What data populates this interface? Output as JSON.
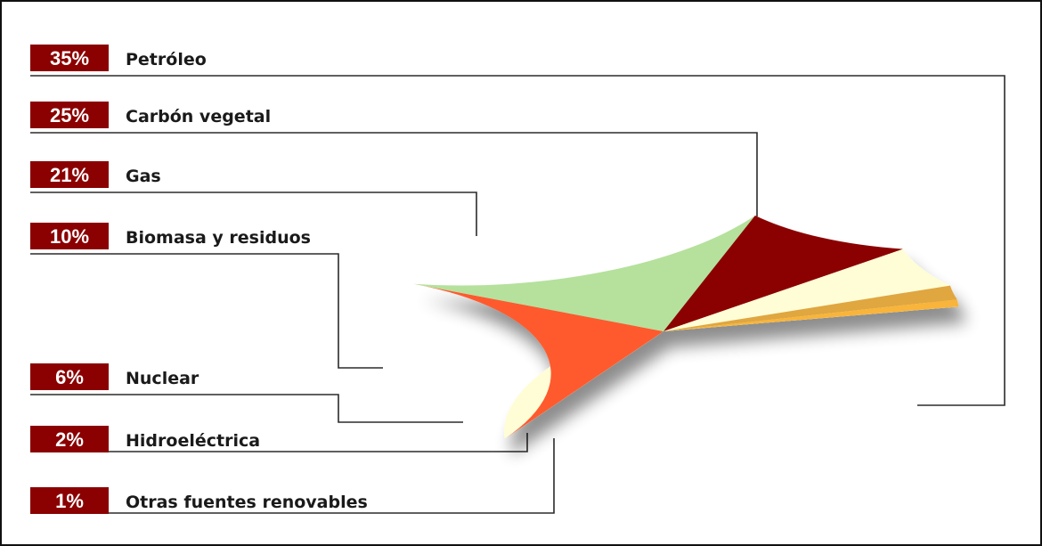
{
  "chart_data": {
    "type": "pie",
    "title": "",
    "categories": [
      "Petróleo",
      "Carbón vegetal",
      "Gas",
      "Biomasa y residuos",
      "Nuclear",
      "Hidroeléctrica",
      "Otras fuentes renovables"
    ],
    "values": [
      35,
      25,
      21,
      10,
      6,
      2,
      1
    ],
    "value_labels": [
      "35%",
      "25%",
      "21%",
      "10%",
      "6%",
      "2%",
      "1%"
    ],
    "slice_colors": [
      "#FFFDD6",
      "#FF5A2E",
      "#B5E19C",
      "#8B0000",
      "#FFFDD6",
      "#E0A63F",
      "#F8B43A"
    ],
    "badge_color": "#8B0000",
    "legend_placement": "left",
    "style": "3d-tilted-pie"
  }
}
